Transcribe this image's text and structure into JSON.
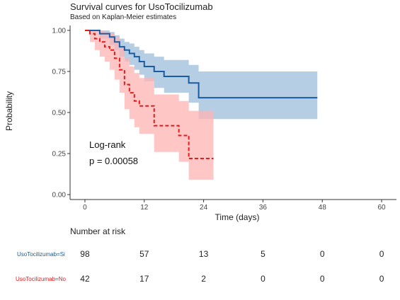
{
  "title": "Survival curves for UsoTocilizumab",
  "subtitle": "Based on Kaplan-Meier estimates",
  "colors": {
    "si": "#1a5ca3",
    "si_ci": "#a9c6df",
    "no": "#e41a1c",
    "no_ci": "#ffb3b3"
  },
  "chart_data": {
    "type": "line",
    "xlabel": "Time (days)",
    "ylabel": "Probability",
    "xlim": [
      -3,
      63
    ],
    "ylim": [
      -0.03,
      1.03
    ],
    "x_ticks": [
      0,
      12,
      24,
      36,
      48,
      60
    ],
    "y_ticks": [
      0.0,
      0.25,
      0.5,
      0.75,
      1.0
    ],
    "x_tick_labels": [
      "0",
      "12",
      "24",
      "36",
      "48",
      "60"
    ],
    "y_tick_labels": [
      "0.00",
      "0.25",
      "0.50",
      "0.75",
      "1.00"
    ],
    "annotation": {
      "line1": "Log-rank",
      "line2": "p = 0.00058"
    },
    "series": [
      {
        "key": "si",
        "steps": [
          [
            0,
            1.0
          ],
          [
            3,
            0.98
          ],
          [
            5,
            0.96
          ],
          [
            6,
            0.93
          ],
          [
            7,
            0.9
          ],
          [
            8,
            0.88
          ],
          [
            9,
            0.86
          ],
          [
            10,
            0.84
          ],
          [
            11,
            0.81
          ],
          [
            12,
            0.78
          ],
          [
            14,
            0.75
          ],
          [
            16,
            0.72
          ],
          [
            21,
            0.68
          ],
          [
            23,
            0.59
          ],
          [
            47,
            0.59
          ]
        ],
        "ci_upper": [
          [
            0,
            1.0
          ],
          [
            3,
            1.0
          ],
          [
            5,
            0.99
          ],
          [
            6,
            0.97
          ],
          [
            7,
            0.95
          ],
          [
            8,
            0.93
          ],
          [
            9,
            0.92
          ],
          [
            10,
            0.9
          ],
          [
            11,
            0.88
          ],
          [
            12,
            0.86
          ],
          [
            14,
            0.84
          ],
          [
            16,
            0.82
          ],
          [
            21,
            0.79
          ],
          [
            23,
            0.75
          ],
          [
            47,
            0.75
          ]
        ],
        "ci_lower": [
          [
            0,
            1.0
          ],
          [
            3,
            0.95
          ],
          [
            5,
            0.91
          ],
          [
            6,
            0.88
          ],
          [
            7,
            0.84
          ],
          [
            8,
            0.81
          ],
          [
            9,
            0.79
          ],
          [
            10,
            0.76
          ],
          [
            11,
            0.73
          ],
          [
            12,
            0.69
          ],
          [
            14,
            0.65
          ],
          [
            16,
            0.62
          ],
          [
            21,
            0.56
          ],
          [
            23,
            0.46
          ],
          [
            47,
            0.46
          ]
        ]
      },
      {
        "key": "no",
        "steps": [
          [
            0,
            1.0
          ],
          [
            1,
            0.98
          ],
          [
            2,
            0.95
          ],
          [
            3,
            0.93
          ],
          [
            4,
            0.9
          ],
          [
            5,
            0.88
          ],
          [
            6,
            0.83
          ],
          [
            7,
            0.76
          ],
          [
            8,
            0.67
          ],
          [
            9,
            0.62
          ],
          [
            10,
            0.57
          ],
          [
            11,
            0.54
          ],
          [
            14,
            0.42
          ],
          [
            19,
            0.36
          ],
          [
            21,
            0.22
          ],
          [
            26,
            0.22
          ]
        ],
        "ci_upper": [
          [
            0,
            1.0
          ],
          [
            1,
            1.0
          ],
          [
            2,
            1.0
          ],
          [
            3,
            1.0
          ],
          [
            4,
            0.99
          ],
          [
            5,
            0.98
          ],
          [
            6,
            0.96
          ],
          [
            7,
            0.9
          ],
          [
            8,
            0.83
          ],
          [
            9,
            0.78
          ],
          [
            10,
            0.74
          ],
          [
            11,
            0.71
          ],
          [
            14,
            0.61
          ],
          [
            19,
            0.57
          ],
          [
            21,
            0.51
          ],
          [
            26,
            0.51
          ]
        ],
        "ci_lower": [
          [
            0,
            1.0
          ],
          [
            1,
            0.93
          ],
          [
            2,
            0.88
          ],
          [
            3,
            0.84
          ],
          [
            4,
            0.81
          ],
          [
            5,
            0.76
          ],
          [
            6,
            0.7
          ],
          [
            7,
            0.62
          ],
          [
            8,
            0.52
          ],
          [
            9,
            0.46
          ],
          [
            10,
            0.41
          ],
          [
            11,
            0.37
          ],
          [
            14,
            0.26
          ],
          [
            19,
            0.2
          ],
          [
            21,
            0.09
          ],
          [
            26,
            0.09
          ]
        ]
      }
    ]
  },
  "risk_table": {
    "title": "Number at risk",
    "rows": [
      {
        "label": "UsoTocilizumab=Si",
        "values": [
          "98",
          "57",
          "13",
          "5",
          "0",
          "0"
        ]
      },
      {
        "label": "UsoTocilizumab=No",
        "values": [
          "42",
          "17",
          "2",
          "0",
          "0",
          "0"
        ]
      }
    ]
  }
}
